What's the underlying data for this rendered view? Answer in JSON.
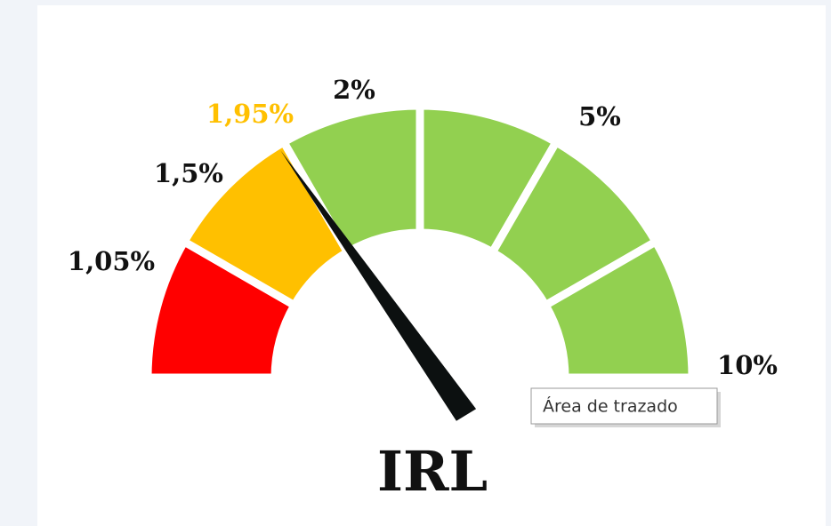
{
  "chart_data": {
    "type": "gauge",
    "title": "IRL",
    "categories": [
      "1,05%",
      "1,5%",
      "1,95%",
      "2%",
      "5%",
      "10%"
    ],
    "values": [
      1,
      1,
      1,
      1,
      1,
      1
    ],
    "colors": [
      "#ff0000",
      "#ffc000",
      "#92d050",
      "#92d050",
      "#92d050",
      "#92d050"
    ],
    "label_colors": [
      "#111111",
      "#111111",
      "#ffc000",
      "#111111",
      "#111111",
      "#111111"
    ],
    "needle": 1.95,
    "needle_color": "#0c1010",
    "tooltip": "Área de trazado"
  }
}
